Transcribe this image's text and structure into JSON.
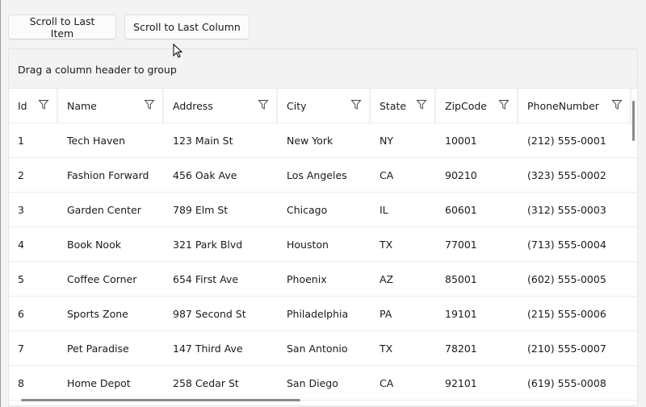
{
  "buttons": {
    "scroll_last_item": "Scroll to Last Item",
    "scroll_last_column": "Scroll to Last Column"
  },
  "grid": {
    "group_panel": "Drag a column header to group",
    "columns": [
      "Id",
      "Name",
      "Address",
      "City",
      "State",
      "ZipCode",
      "PhoneNumber"
    ],
    "rows": [
      [
        "1",
        "Tech Haven",
        "123 Main St",
        "New York",
        "NY",
        "10001",
        "(212) 555-0001"
      ],
      [
        "2",
        "Fashion Forward",
        "456 Oak Ave",
        "Los Angeles",
        "CA",
        "90210",
        "(323) 555-0002"
      ],
      [
        "3",
        "Garden Center",
        "789 Elm St",
        "Chicago",
        "IL",
        "60601",
        "(312) 555-0003"
      ],
      [
        "4",
        "Book Nook",
        "321 Park Blvd",
        "Houston",
        "TX",
        "77001",
        "(713) 555-0004"
      ],
      [
        "5",
        "Coffee Corner",
        "654 First Ave",
        "Phoenix",
        "AZ",
        "85001",
        "(602) 555-0005"
      ],
      [
        "6",
        "Sports Zone",
        "987 Second St",
        "Philadelphia",
        "PA",
        "19101",
        "(215) 555-0006"
      ],
      [
        "7",
        "Pet Paradise",
        "147 Third Ave",
        "San Antonio",
        "TX",
        "78201",
        "(210) 555-0007"
      ],
      [
        "8",
        "Home Depot",
        "258 Cedar St",
        "San Diego",
        "CA",
        "92101",
        "(619) 555-0008"
      ]
    ]
  }
}
